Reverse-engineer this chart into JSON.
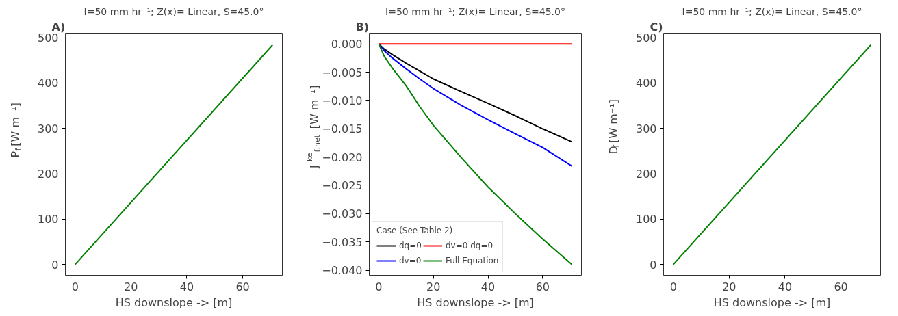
{
  "chart_data": [
    {
      "type": "line",
      "title": "A)",
      "subtitle": "I=50 mm hr⁻¹; Z(x)= Linear, S=45.0°",
      "xlabel": "HS downslope -> [m]",
      "ylabel": "P$_{f}$  [W m⁻¹]",
      "x": [
        0,
        70.7
      ],
      "series": [
        {
          "color": "#008000",
          "values": [
            0,
            484
          ]
        }
      ],
      "xlim": [
        -3.5,
        74.2
      ],
      "ylim": [
        -24,
        510
      ],
      "xticks": [
        0,
        20,
        40,
        60
      ],
      "yticks": [
        0,
        100,
        200,
        300,
        400,
        500
      ],
      "grid": false,
      "legend": false
    },
    {
      "type": "line",
      "title": "B)",
      "subtitle": "I=50 mm hr⁻¹; Z(x)= Linear, S=45.0°",
      "xlabel": "HS downslope -> [m]",
      "ylabel": "J$^{ke}$$_{f,net}$ [W m⁻¹]",
      "x": [
        0,
        2,
        5,
        10,
        15,
        20,
        30,
        40,
        50,
        60,
        70.7
      ],
      "series": [
        {
          "name": "dq=0",
          "color": "#000000",
          "values": [
            0,
            -0.0009,
            -0.0019,
            -0.0034,
            -0.0048,
            -0.0062,
            -0.0084,
            -0.0105,
            -0.0127,
            -0.015,
            -0.0173
          ]
        },
        {
          "name": "dv=0",
          "color": "#0000ff",
          "values": [
            0,
            -0.0012,
            -0.0025,
            -0.0044,
            -0.0062,
            -0.0079,
            -0.0108,
            -0.0134,
            -0.0159,
            -0.0183,
            -0.0216
          ]
        },
        {
          "name": "dv=0 dq=0",
          "color": "#ff0000",
          "values": [
            0,
            0,
            0,
            0,
            0,
            0,
            0,
            0,
            0,
            0,
            0
          ]
        },
        {
          "name": "Full Equation",
          "color": "#008000",
          "values": [
            0,
            -0.0022,
            -0.0043,
            -0.0074,
            -0.0111,
            -0.0144,
            -0.02,
            -0.0253,
            -0.03,
            -0.0345,
            -0.039
          ]
        }
      ],
      "legend_title": "Case (See Table 2)",
      "legend": "bottom left",
      "xlim": [
        -3.5,
        74.2
      ],
      "ylim": [
        -0.0409,
        0.0019
      ],
      "xticks": [
        0,
        20,
        40,
        60
      ],
      "yticks": [
        {
          "value": 0,
          "label": "0.000"
        },
        {
          "value": -0.005,
          "label": "−0.005"
        },
        {
          "value": -0.01,
          "label": "−0.010"
        },
        {
          "value": -0.015,
          "label": "−0.015"
        },
        {
          "value": -0.02,
          "label": "−0.020"
        },
        {
          "value": -0.025,
          "label": "−0.025"
        },
        {
          "value": -0.03,
          "label": "−0.030"
        },
        {
          "value": -0.035,
          "label": "−0.035"
        },
        {
          "value": -0.04,
          "label": "−0.040"
        }
      ],
      "grid": false
    },
    {
      "type": "line",
      "title": "C)",
      "subtitle": "I=50 mm hr⁻¹; Z(x)= Linear, S=45.0°",
      "xlabel": "HS downslope -> [m]",
      "ylabel": "D$_{f}$ [W m⁻¹]",
      "x": [
        0,
        70.7
      ],
      "series": [
        {
          "color": "#008000",
          "values": [
            0,
            484
          ]
        }
      ],
      "xlim": [
        -3.5,
        74.2
      ],
      "ylim": [
        -24,
        510
      ],
      "xticks": [
        0,
        20,
        40,
        60
      ],
      "yticks": [
        0,
        100,
        200,
        300,
        400,
        500
      ],
      "grid": false,
      "legend": false
    }
  ]
}
